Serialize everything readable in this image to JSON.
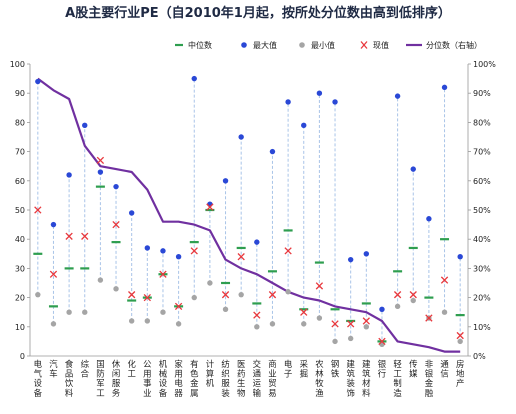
{
  "chart_data": {
    "type": "line",
    "title": "A股主要行业PE（自2010年1月起，按所处分位数由高到低排序）",
    "categories": [
      "电气设备",
      "汽车",
      "食品饮料",
      "综合",
      "国防军工",
      "休闲服务",
      "化工",
      "公用事业",
      "机械设备",
      "家用电器",
      "有色金属",
      "计算机",
      "纺织服装",
      "医药生物",
      "交通运输",
      "商业贸易",
      "电子",
      "采掘",
      "农林牧渔",
      "钢铁",
      "建筑装饰",
      "建筑材料",
      "银行",
      "轻工制造",
      "传媒",
      "非银金融",
      "通信",
      "房地产"
    ],
    "series": [
      {
        "name": "中位数",
        "marker": "dash",
        "color": "#2e9e4f",
        "axis": "left",
        "values": [
          35,
          17,
          30,
          30,
          58,
          39,
          19,
          20,
          28,
          17,
          39,
          50,
          25,
          37,
          18,
          29,
          43,
          16,
          32,
          16,
          12,
          18,
          5,
          29,
          37,
          20,
          40,
          14
        ]
      },
      {
        "name": "最大值",
        "marker": "dot",
        "color": "#2a48d6",
        "axis": "left",
        "values": [
          94,
          45,
          62,
          79,
          63,
          58,
          49,
          37,
          36,
          34,
          95,
          52,
          60,
          75,
          39,
          70,
          87,
          79,
          90,
          87,
          33,
          35,
          16,
          89,
          64,
          47,
          92,
          34
        ]
      },
      {
        "name": "最小值",
        "marker": "dot",
        "color": "#a5a5a5",
        "axis": "left",
        "values": [
          21,
          11,
          15,
          15,
          26,
          23,
          12,
          12,
          15,
          11,
          20,
          25,
          16,
          21,
          10,
          11,
          22,
          11,
          13,
          5,
          6,
          10,
          4,
          17,
          19,
          13,
          15,
          5
        ]
      },
      {
        "name": "现值",
        "marker": "cross",
        "color": "#e8383d",
        "axis": "left",
        "values": [
          50,
          28,
          41,
          41,
          67,
          45,
          21,
          20,
          28,
          17,
          36,
          51,
          21,
          34,
          14,
          21,
          36,
          15,
          24,
          11,
          11,
          12,
          5,
          21,
          21,
          13,
          26,
          7
        ]
      },
      {
        "name": "分位数（右轴）",
        "marker": "line",
        "color": "#7030a0",
        "axis": "right",
        "values": [
          95,
          91,
          88,
          72,
          65,
          64,
          63,
          57,
          46,
          46,
          45,
          43,
          33,
          30,
          28,
          25,
          22,
          20,
          19,
          17,
          16,
          15,
          12,
          5,
          4,
          3,
          1.5,
          1.5
        ]
      }
    ],
    "ylim_left": [
      0,
      100
    ],
    "yticks_left": [
      0,
      10,
      20,
      30,
      40,
      50,
      60,
      70,
      80,
      90,
      100
    ],
    "ylim_right": [
      0,
      100
    ],
    "yticks_right": [
      "0%",
      "10%",
      "20%",
      "30%",
      "40%",
      "50%",
      "60%",
      "70%",
      "80%",
      "90%",
      "100%"
    ],
    "grid": false,
    "legend_position": "top"
  }
}
